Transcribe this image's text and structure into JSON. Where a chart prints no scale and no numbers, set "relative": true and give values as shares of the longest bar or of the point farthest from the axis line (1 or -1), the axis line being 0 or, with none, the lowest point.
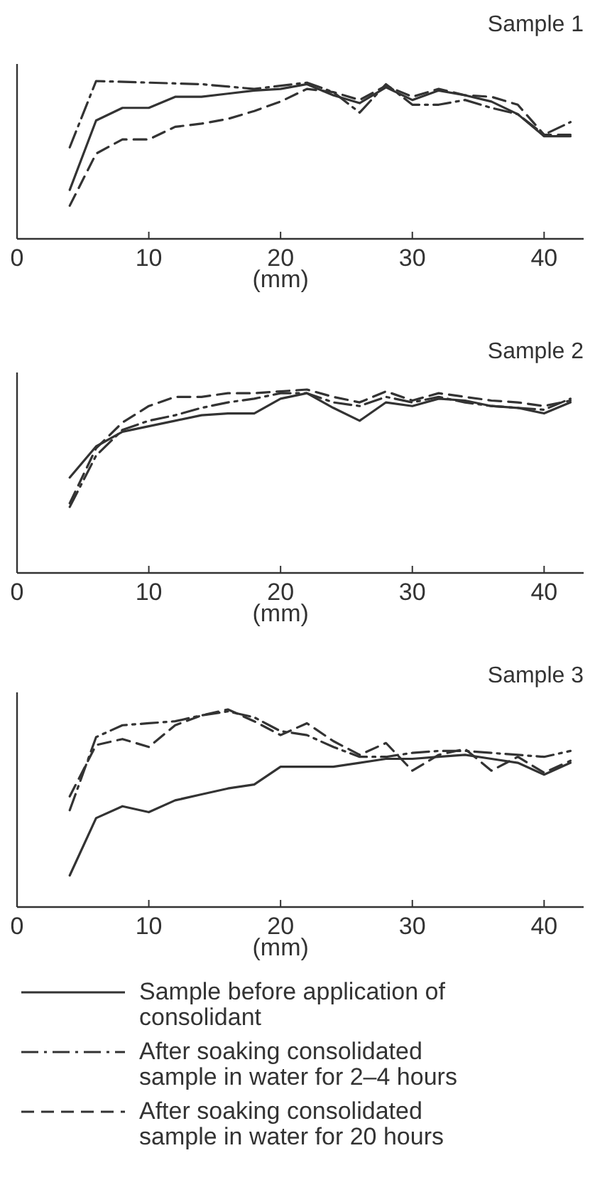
{
  "chart_data": [
    {
      "type": "line",
      "title": "Sample 1",
      "xlabel": "(mm)",
      "relative": true,
      "xlim": [
        0,
        43
      ],
      "xticks": [
        0,
        10,
        20,
        30,
        40
      ],
      "x": [
        4,
        6,
        8,
        10,
        12,
        14,
        16,
        18,
        20,
        22,
        24,
        26,
        28,
        30,
        32,
        34,
        36,
        38,
        40,
        42
      ],
      "legend": false,
      "series": [
        {
          "color": "#333333",
          "line_style": "solid",
          "values": [
            0.31,
            0.75,
            0.83,
            0.83,
            0.9,
            0.9,
            0.92,
            0.94,
            0.95,
            0.98,
            0.91,
            0.86,
            0.96,
            0.88,
            0.94,
            0.91,
            0.87,
            0.79,
            0.65,
            0.65
          ]
        },
        {
          "color": "#333333",
          "line_style": "dashdot",
          "x": [
            4,
            6,
            10,
            14,
            18,
            22,
            24,
            26,
            28,
            30,
            32,
            34,
            36,
            38,
            40,
            42
          ],
          "values": [
            0.58,
            1.0,
            0.99,
            0.98,
            0.95,
            0.99,
            0.93,
            0.8,
            0.98,
            0.85,
            0.85,
            0.88,
            0.83,
            0.79,
            0.66,
            0.74
          ]
        },
        {
          "color": "#333333",
          "line_style": "dashed",
          "values": [
            0.21,
            0.54,
            0.63,
            0.63,
            0.71,
            0.73,
            0.76,
            0.81,
            0.87,
            0.95,
            0.93,
            0.88,
            0.97,
            0.9,
            0.95,
            0.91,
            0.9,
            0.85,
            0.66,
            0.66
          ]
        }
      ]
    },
    {
      "type": "line",
      "title": "Sample 2",
      "xlabel": "(mm)",
      "relative": true,
      "xlim": [
        0,
        43
      ],
      "xticks": [
        0,
        10,
        20,
        30,
        40
      ],
      "x": [
        4,
        6,
        8,
        10,
        12,
        14,
        16,
        18,
        20,
        22,
        24,
        26,
        28,
        30,
        32,
        34,
        36,
        38,
        40,
        42
      ],
      "legend": false,
      "series": [
        {
          "color": "#333333",
          "line_style": "solid",
          "values": [
            0.52,
            0.69,
            0.77,
            0.8,
            0.83,
            0.86,
            0.87,
            0.87,
            0.95,
            0.98,
            0.9,
            0.83,
            0.93,
            0.91,
            0.95,
            0.94,
            0.91,
            0.9,
            0.87,
            0.93
          ]
        },
        {
          "color": "#333333",
          "line_style": "dashdot",
          "values": [
            0.36,
            0.64,
            0.78,
            0.83,
            0.86,
            0.9,
            0.93,
            0.95,
            0.98,
            0.98,
            0.93,
            0.91,
            0.96,
            0.93,
            0.96,
            0.93,
            0.91,
            0.9,
            0.89,
            0.95
          ]
        },
        {
          "color": "#333333",
          "line_style": "dashed",
          "values": [
            0.38,
            0.68,
            0.82,
            0.91,
            0.96,
            0.96,
            0.98,
            0.98,
            0.99,
            1.0,
            0.96,
            0.93,
            0.99,
            0.94,
            0.98,
            0.96,
            0.94,
            0.93,
            0.91,
            0.94
          ]
        }
      ]
    },
    {
      "type": "line",
      "title": "Sample 3",
      "xlabel": "(mm)",
      "relative": true,
      "xlim": [
        0,
        43
      ],
      "xticks": [
        0,
        10,
        20,
        30,
        40
      ],
      "x": [
        4,
        6,
        8,
        10,
        12,
        14,
        16,
        18,
        20,
        22,
        24,
        26,
        28,
        30,
        32,
        34,
        36,
        38,
        40,
        42
      ],
      "legend": "bottom",
      "series": [
        {
          "name": "Sample before application of consolidant",
          "color": "#333333",
          "line_style": "solid",
          "values": [
            0.16,
            0.45,
            0.51,
            0.48,
            0.54,
            0.57,
            0.6,
            0.62,
            0.71,
            0.71,
            0.71,
            0.73,
            0.75,
            0.75,
            0.76,
            0.77,
            0.75,
            0.73,
            0.67,
            0.73
          ]
        },
        {
          "name": "After soaking consolidated sample in water for 2–4 hours",
          "color": "#333333",
          "line_style": "dashdot",
          "values": [
            0.49,
            0.86,
            0.92,
            0.93,
            0.94,
            0.97,
            0.99,
            0.96,
            0.89,
            0.87,
            0.81,
            0.76,
            0.76,
            0.78,
            0.79,
            0.79,
            0.78,
            0.77,
            0.76,
            0.79
          ]
        },
        {
          "name": "After soaking consolidated sample in water for 20 hours",
          "color": "#333333",
          "line_style": "dashed",
          "values": [
            0.56,
            0.82,
            0.85,
            0.81,
            0.92,
            0.97,
            1.0,
            0.94,
            0.87,
            0.93,
            0.84,
            0.77,
            0.83,
            0.69,
            0.77,
            0.8,
            0.69,
            0.76,
            0.68,
            0.74
          ]
        }
      ]
    }
  ]
}
